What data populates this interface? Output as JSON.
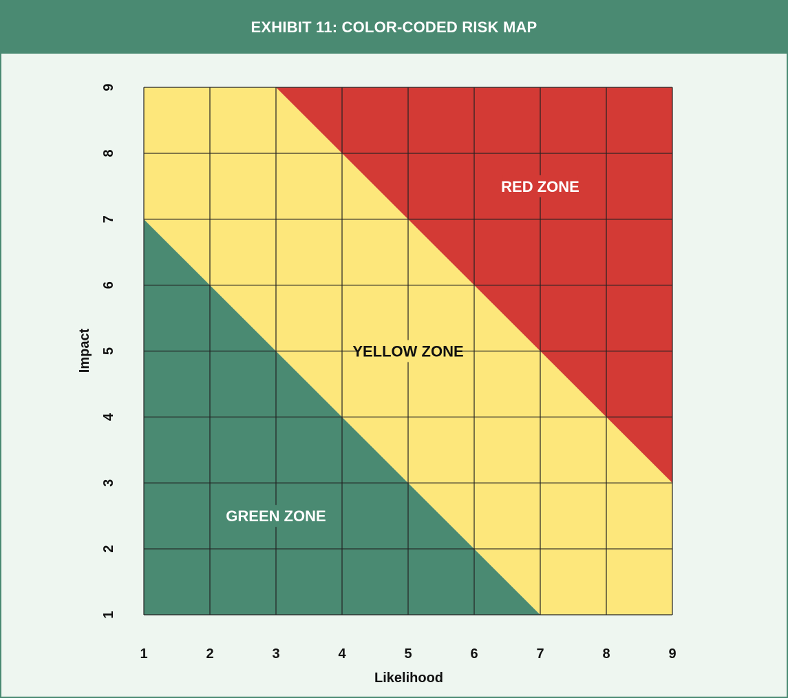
{
  "header": {
    "title": "EXHIBIT 11: COLOR-CODED RISK MAP"
  },
  "colors": {
    "header_bg": "#4a8a72",
    "panel_bg": "#eef6f0",
    "green_zone": "#4a8a72",
    "yellow_zone": "#fde77b",
    "red_zone": "#d33a35",
    "grid": "#222222"
  },
  "chart_data": {
    "type": "heatmap",
    "title": "EXHIBIT 11: COLOR-CODED RISK MAP",
    "xlabel": "Likelihood",
    "ylabel": "Impact",
    "xlim": [
      1,
      9
    ],
    "ylim": [
      1,
      9
    ],
    "x_ticks": [
      "1",
      "2",
      "3",
      "4",
      "5",
      "6",
      "7",
      "8",
      "9"
    ],
    "y_ticks": [
      "1",
      "2",
      "3",
      "4",
      "5",
      "6",
      "7",
      "8",
      "9"
    ],
    "grid": true,
    "zones": [
      {
        "name": "GREEN ZONE",
        "color": "#4a8a72",
        "polygon": [
          [
            1,
            1
          ],
          [
            7,
            1
          ],
          [
            1,
            7
          ]
        ],
        "label_at": [
          3,
          2.5
        ]
      },
      {
        "name": "YELLOW ZONE",
        "color": "#fde77b",
        "polygon": [
          [
            7,
            1
          ],
          [
            9,
            1
          ],
          [
            9,
            3
          ],
          [
            3,
            9
          ],
          [
            1,
            9
          ],
          [
            1,
            7
          ]
        ],
        "label_at": [
          5,
          5
        ]
      },
      {
        "name": "RED ZONE",
        "color": "#d33a35",
        "polygon": [
          [
            3,
            9
          ],
          [
            9,
            9
          ],
          [
            9,
            3
          ]
        ],
        "label_at": [
          7,
          7.5
        ]
      }
    ]
  }
}
